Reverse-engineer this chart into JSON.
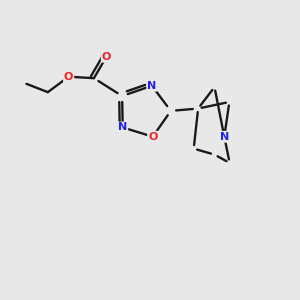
{
  "bg_color": "#e8e8e8",
  "bond_color": "#1a1a1a",
  "N_color": "#2222ee",
  "O_color": "#ee2222",
  "lw": 1.7,
  "figsize": [
    3.0,
    3.0
  ],
  "dpi": 100,
  "xlim": [
    -1,
    9
  ],
  "ylim": [
    -1,
    9
  ]
}
